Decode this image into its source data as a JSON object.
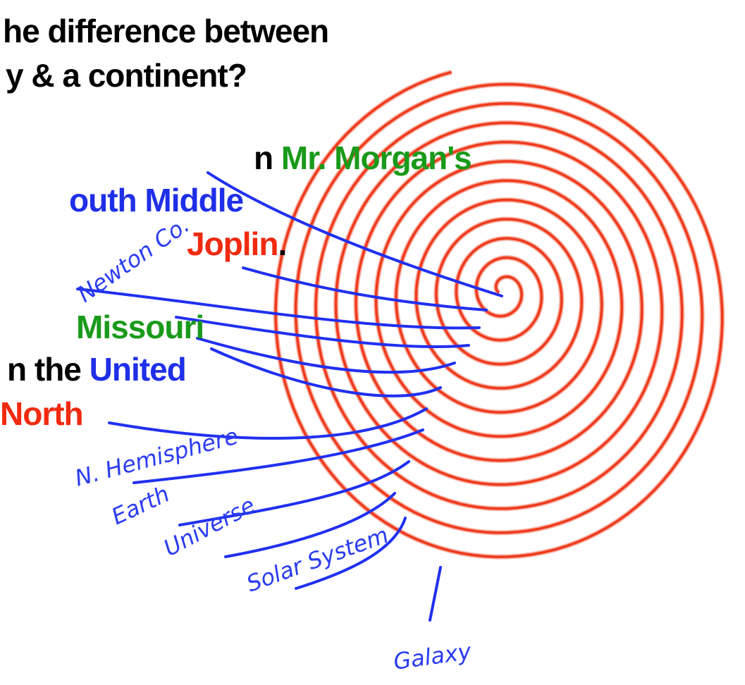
{
  "slide": {
    "heading": [
      "he difference between",
      "y & a continent?"
    ],
    "lines": [
      [
        {
          "text": "n ",
          "color": "#000000"
        },
        {
          "text": "Mr. Morgan's",
          "color": "#1a9a1a"
        }
      ],
      [
        {
          "text": "outh Middle",
          "color": "#1f2fe8"
        }
      ],
      [
        {
          "text": "Joplin",
          "color": "#f02a10"
        },
        {
          "text": ".",
          "color": "#000000"
        }
      ],
      [
        {
          "text": "Missouri",
          "color": "#1a9a1a"
        }
      ],
      [
        {
          "text": "n the ",
          "color": "#000000"
        },
        {
          "text": "United",
          "color": "#1f2fe8"
        }
      ],
      [
        {
          "text": "North",
          "color": "#f02a10"
        }
      ]
    ],
    "annotations": [
      "Newton Co.",
      "N. Hemisphere",
      "Earth",
      "Universe",
      "Solar System",
      "Galaxy"
    ]
  }
}
